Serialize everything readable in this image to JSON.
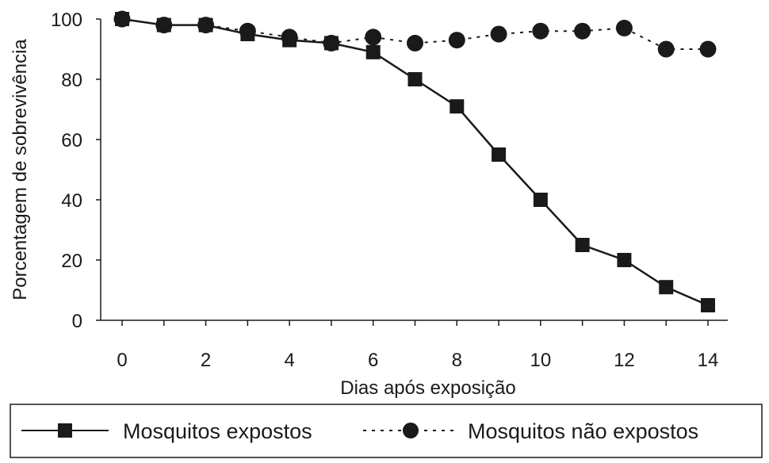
{
  "chart_data": {
    "type": "line",
    "xlabel": "Dias após exposição",
    "ylabel": "Porcentagem de sobrevivência",
    "x": [
      0,
      1,
      2,
      3,
      4,
      5,
      6,
      7,
      8,
      9,
      10,
      11,
      12,
      13,
      14
    ],
    "xlim": [
      0,
      14
    ],
    "ylim": [
      0,
      100
    ],
    "xticks": [
      0,
      2,
      4,
      6,
      8,
      10,
      12,
      14
    ],
    "yticks": [
      0,
      20,
      40,
      60,
      80,
      100
    ],
    "grid": false,
    "legend_position": "bottom",
    "series": [
      {
        "name": "Mosquitos expostos",
        "marker": "square",
        "line_style": "solid",
        "color": "#1a1a1a",
        "values": [
          100,
          98,
          98,
          95,
          93,
          92,
          89,
          80,
          71,
          55,
          40,
          25,
          20,
          11,
          5
        ]
      },
      {
        "name": "Mosquitos não expostos",
        "marker": "circle",
        "line_style": "dotted",
        "color": "#1a1a1a",
        "values": [
          100,
          98,
          98,
          96,
          94,
          92,
          94,
          92,
          93,
          95,
          96,
          96,
          97,
          90,
          90
        ]
      }
    ]
  }
}
